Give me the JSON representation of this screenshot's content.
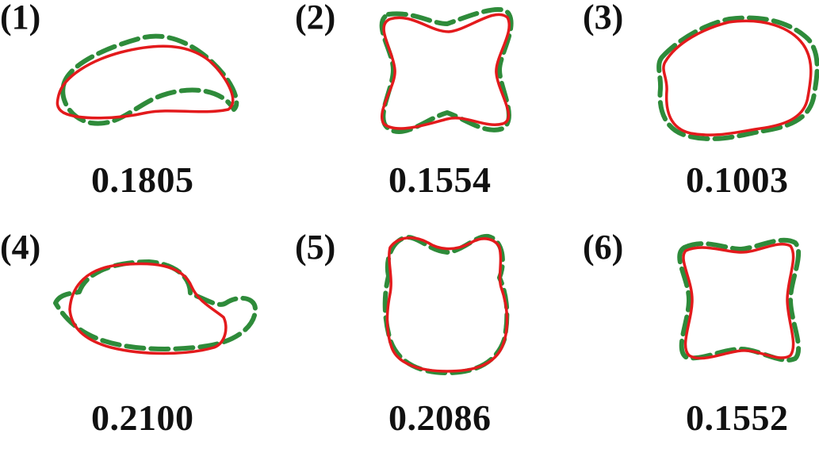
{
  "panels": [
    {
      "label": "(1)",
      "score": "0.1805"
    },
    {
      "label": "(2)",
      "score": "0.1554"
    },
    {
      "label": "(3)",
      "score": "0.1003"
    },
    {
      "label": "(4)",
      "score": "0.2100"
    },
    {
      "label": "(5)",
      "score": "0.2086"
    },
    {
      "label": "(6)",
      "score": "0.1552"
    }
  ],
  "legend": {
    "ground_truth_color": "#2e8b3a",
    "prediction_color": "#e31a1c"
  }
}
